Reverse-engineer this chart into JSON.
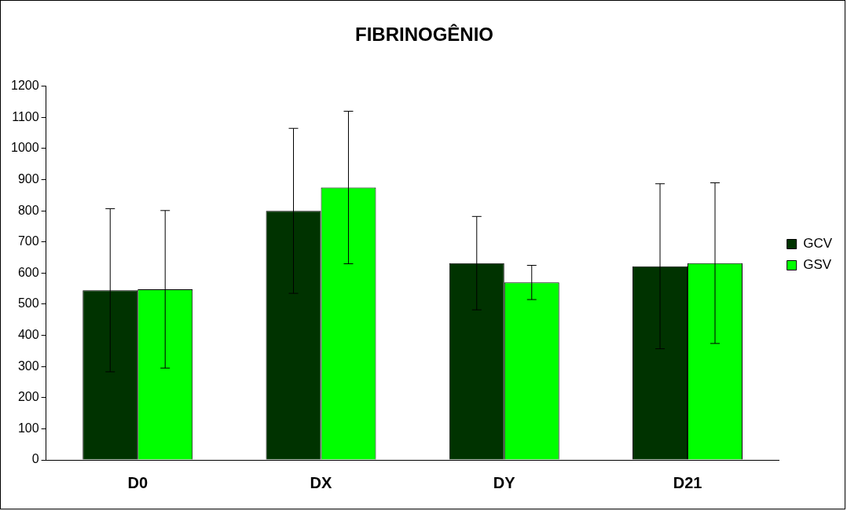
{
  "chart_data": {
    "type": "bar",
    "title": "FIBRINOGÊNIO",
    "categories": [
      "D0",
      "DX",
      "DY",
      "D21"
    ],
    "series": [
      {
        "name": "GCV",
        "color": "#003300",
        "values": [
          545,
          800,
          632,
          622
        ],
        "errors": [
          262,
          265,
          150,
          265
        ]
      },
      {
        "name": "GSV",
        "color": "#00ff00",
        "values": [
          548,
          875,
          570,
          632
        ],
        "errors": [
          253,
          245,
          55,
          258
        ]
      }
    ],
    "ylim": [
      0,
      1200
    ],
    "yticks": [
      0,
      100,
      200,
      300,
      400,
      500,
      600,
      700,
      800,
      900,
      1000,
      1100,
      1200
    ],
    "grid": false,
    "legend": "right"
  }
}
